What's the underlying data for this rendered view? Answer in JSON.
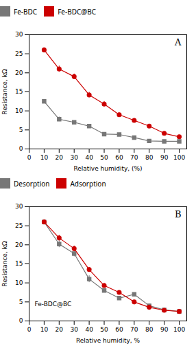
{
  "chart_data": [
    {
      "type": "line",
      "xlabel": "Relative humidity, (%)",
      "ylabel": "Resistance, kΩ",
      "annotations": [
        "A"
      ],
      "x": [
        10,
        20,
        30,
        40,
        50,
        60,
        70,
        80,
        90,
        100
      ],
      "series": [
        {
          "name": "Fe-BDC",
          "color": "#777777",
          "marker": "square",
          "values": [
            12.5,
            7.8,
            7.0,
            6.0,
            3.9,
            3.8,
            3.0,
            2.1,
            2.0,
            2.0
          ],
          "err": [
            0.4,
            0.6,
            0.4,
            0.4,
            0.4,
            0.3,
            0.3,
            0.4,
            0.3,
            0.2
          ]
        },
        {
          "name": "Fe-BDC@BC",
          "color": "#cc0000",
          "marker": "circle",
          "values": [
            26.0,
            21.0,
            19.0,
            14.2,
            11.8,
            9.0,
            7.5,
            6.0,
            4.1,
            3.2
          ],
          "err": [
            0.5,
            0.8,
            0.7,
            0.7,
            0.7,
            0.5,
            0.5,
            0.5,
            0.4,
            0.3
          ]
        }
      ],
      "xlim": [
        0,
        105
      ],
      "xticks": [
        0,
        10,
        20,
        30,
        40,
        50,
        60,
        70,
        80,
        90,
        100
      ],
      "ylim": [
        0,
        30
      ],
      "yticks": [
        0,
        5,
        10,
        15,
        20,
        25,
        30
      ],
      "legend": "top",
      "grid": false
    },
    {
      "type": "line",
      "xlabel": "Relative humidity, %",
      "ylabel": "Resistance, kΩ",
      "annotations": [
        "B",
        "Fe-BDC@BC"
      ],
      "x": [
        10,
        20,
        30,
        40,
        50,
        60,
        70,
        80,
        90,
        100
      ],
      "series": [
        {
          "name": "Desorption",
          "color": "#777777",
          "marker": "square",
          "values": [
            26.0,
            20.2,
            17.7,
            11.0,
            8.0,
            6.0,
            7.0,
            4.0,
            2.9,
            2.5
          ],
          "err": [
            0.6,
            0.9,
            0.8,
            0.9,
            0.5,
            0.4,
            0.4,
            0.4,
            0.3,
            0.2
          ]
        },
        {
          "name": "Adsorption",
          "color": "#cc0000",
          "marker": "circle",
          "values": [
            26.0,
            21.8,
            19.0,
            13.5,
            9.3,
            7.5,
            5.0,
            3.6,
            2.8,
            2.5
          ],
          "err": [
            0.5,
            0.7,
            0.7,
            0.6,
            0.6,
            0.4,
            0.4,
            0.4,
            0.3,
            0.2
          ]
        }
      ],
      "xlim": [
        0,
        105
      ],
      "xticks": [
        0,
        10,
        20,
        30,
        40,
        50,
        60,
        70,
        80,
        90,
        100
      ],
      "ylim": [
        0,
        30
      ],
      "yticks": [
        0,
        5,
        10,
        15,
        20,
        25,
        30
      ],
      "legend": "top",
      "grid": false
    }
  ]
}
